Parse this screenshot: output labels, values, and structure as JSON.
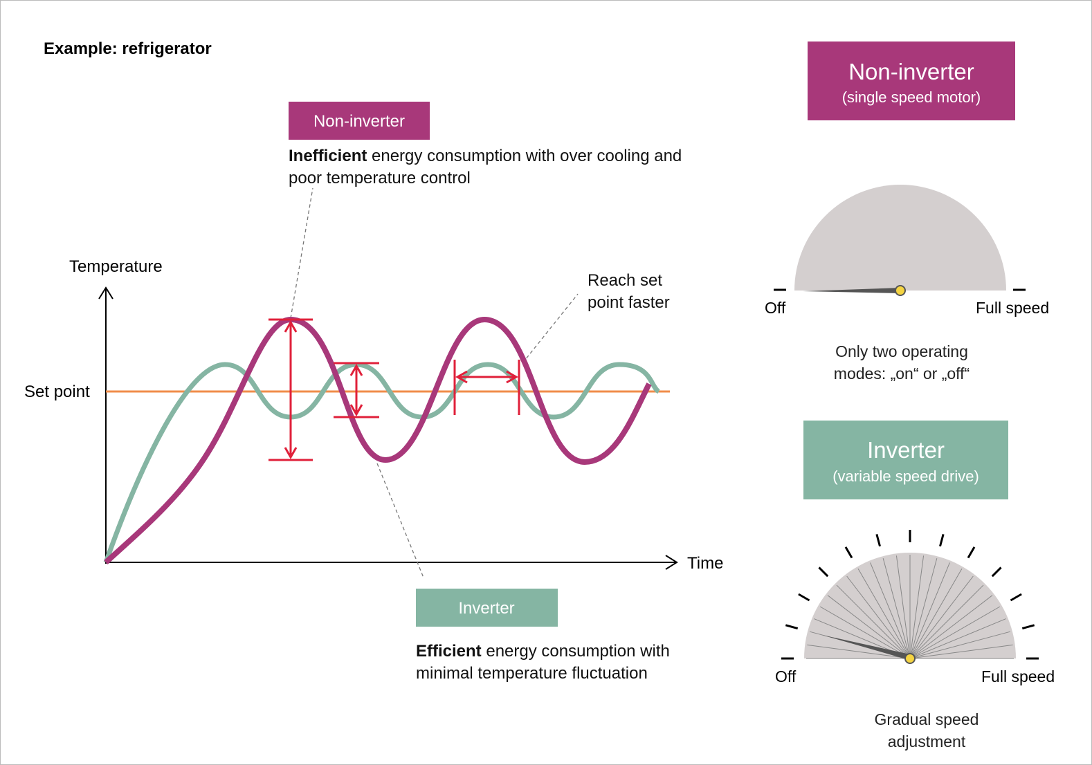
{
  "title": "Example: refrigerator",
  "graph": {
    "y_axis_label": "Temperature",
    "x_axis_label": "Time",
    "set_point_label": "Set point"
  },
  "callouts": {
    "non_inverter": {
      "tag": "Non-inverter",
      "bold": "Inefficient",
      "text": " energy consumption with over cooling and poor temperature control"
    },
    "faster": "Reach set point faster",
    "inverter": {
      "tag": "Inverter",
      "bold": "Efficient",
      "text": " energy consumption with minimal temperature fluctuation"
    }
  },
  "gauges": [
    {
      "title": "Non-inverter",
      "subtitle": "(single speed motor)",
      "off": "Off",
      "full": "Full speed",
      "caption": "Only two operating modes: „on“ or „off“"
    },
    {
      "title": "Inverter",
      "subtitle": "(variable speed drive)",
      "off": "Off",
      "full": "Full speed",
      "caption": "Gradual speed adjustment"
    }
  ]
}
